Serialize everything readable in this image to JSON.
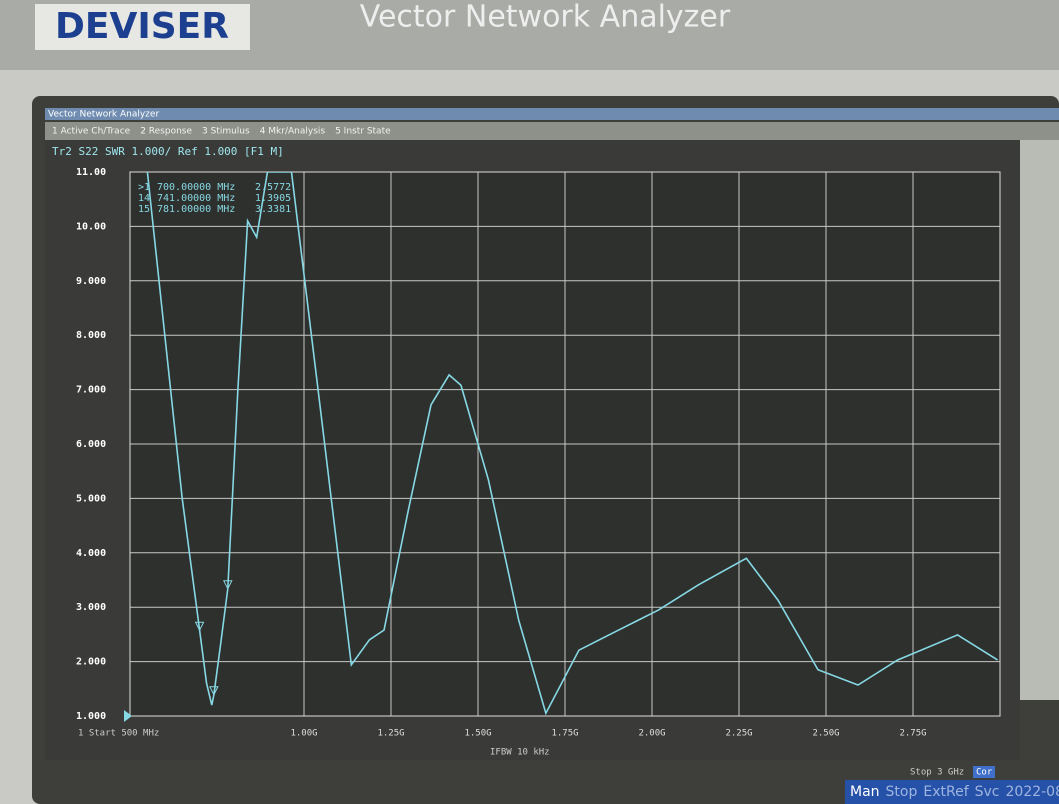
{
  "bezel": {
    "brand": "DEVISER",
    "model": "Vector Network Analyzer"
  },
  "window": {
    "title": "Vector Network Analyzer",
    "menu": [
      "1 Active Ch/Trace",
      "2 Response",
      "3 Stimulus",
      "4 Mkr/Analysis",
      "5 Instr State"
    ],
    "trace_header": "Tr2 S22 SWR 1.000/ Ref 1.000 [F1 M]",
    "start": "1 Start 500 MHz",
    "ifbw": "IFBW 10 kHz",
    "stop": "Stop 3 GHz",
    "cor": "Cor",
    "status": [
      "Man",
      "Stop",
      "ExtRef",
      "Svc",
      "2022-08"
    ]
  },
  "chart_data": {
    "type": "line",
    "x": [
      0.55,
      0.6,
      0.65,
      0.7,
      0.72,
      0.735,
      0.741,
      0.76,
      0.781,
      0.81,
      0.838,
      0.864,
      0.895,
      0.964,
      1.044,
      1.136,
      1.188,
      1.23,
      1.3,
      1.365,
      1.417,
      1.451,
      1.53,
      1.617,
      1.695,
      1.79,
      1.904,
      2.019,
      2.133,
      2.271,
      2.362,
      2.477,
      2.592,
      2.706,
      2.878,
      2.993
    ],
    "series": [
      {
        "name": "Tr2",
        "color": "#86d8e4",
        "values": [
          11.0,
          8.0,
          5.0,
          2.58,
          1.6,
          1.2,
          1.39,
          2.3,
          3.34,
          7.0,
          10.1,
          9.8,
          11.0,
          11.0,
          6.81,
          1.94,
          2.4,
          2.58,
          4.79,
          6.72,
          7.27,
          7.08,
          5.34,
          2.76,
          1.05,
          2.21,
          2.58,
          2.95,
          3.41,
          3.9,
          3.13,
          1.85,
          1.57,
          2.03,
          2.49,
          2.03
        ]
      }
    ],
    "xlim": [
      0.5,
      3.0
    ],
    "xticks": [
      {
        "value": 1.0,
        "label": "1.00G"
      },
      {
        "value": 1.25,
        "label": "1.25G"
      },
      {
        "value": 1.5,
        "label": "1.50G"
      },
      {
        "value": 1.75,
        "label": "1.75G"
      },
      {
        "value": 2.0,
        "label": "2.00G"
      },
      {
        "value": 2.25,
        "label": "2.25G"
      },
      {
        "value": 2.5,
        "label": "2.50G"
      },
      {
        "value": 2.75,
        "label": "2.75G"
      }
    ],
    "ylim": [
      1.0,
      11.0
    ],
    "yticks": [
      {
        "value": 11,
        "label": "11.00"
      },
      {
        "value": 10,
        "label": "10.00"
      },
      {
        "value": 9,
        "label": "9.000"
      },
      {
        "value": 8,
        "label": "8.000"
      },
      {
        "value": 7,
        "label": "7.000"
      },
      {
        "value": 6,
        "label": "6.000"
      },
      {
        "value": 5,
        "label": "5.000"
      },
      {
        "value": 4,
        "label": "4.000"
      },
      {
        "value": 3,
        "label": "3.000"
      },
      {
        "value": 2,
        "label": "2.000"
      },
      {
        "value": 1,
        "label": "1.000"
      }
    ],
    "grid": true,
    "markers": [
      {
        "label": ">1",
        "x": 0.7,
        "x_label": "700.00000 MHz",
        "value": 2.5772
      },
      {
        "label": "14",
        "x": 0.741,
        "x_label": "741.00000 MHz",
        "value": 1.3905
      },
      {
        "label": "15",
        "x": 0.781,
        "x_label": "781.00000 MHz",
        "value": 3.3381
      }
    ]
  }
}
